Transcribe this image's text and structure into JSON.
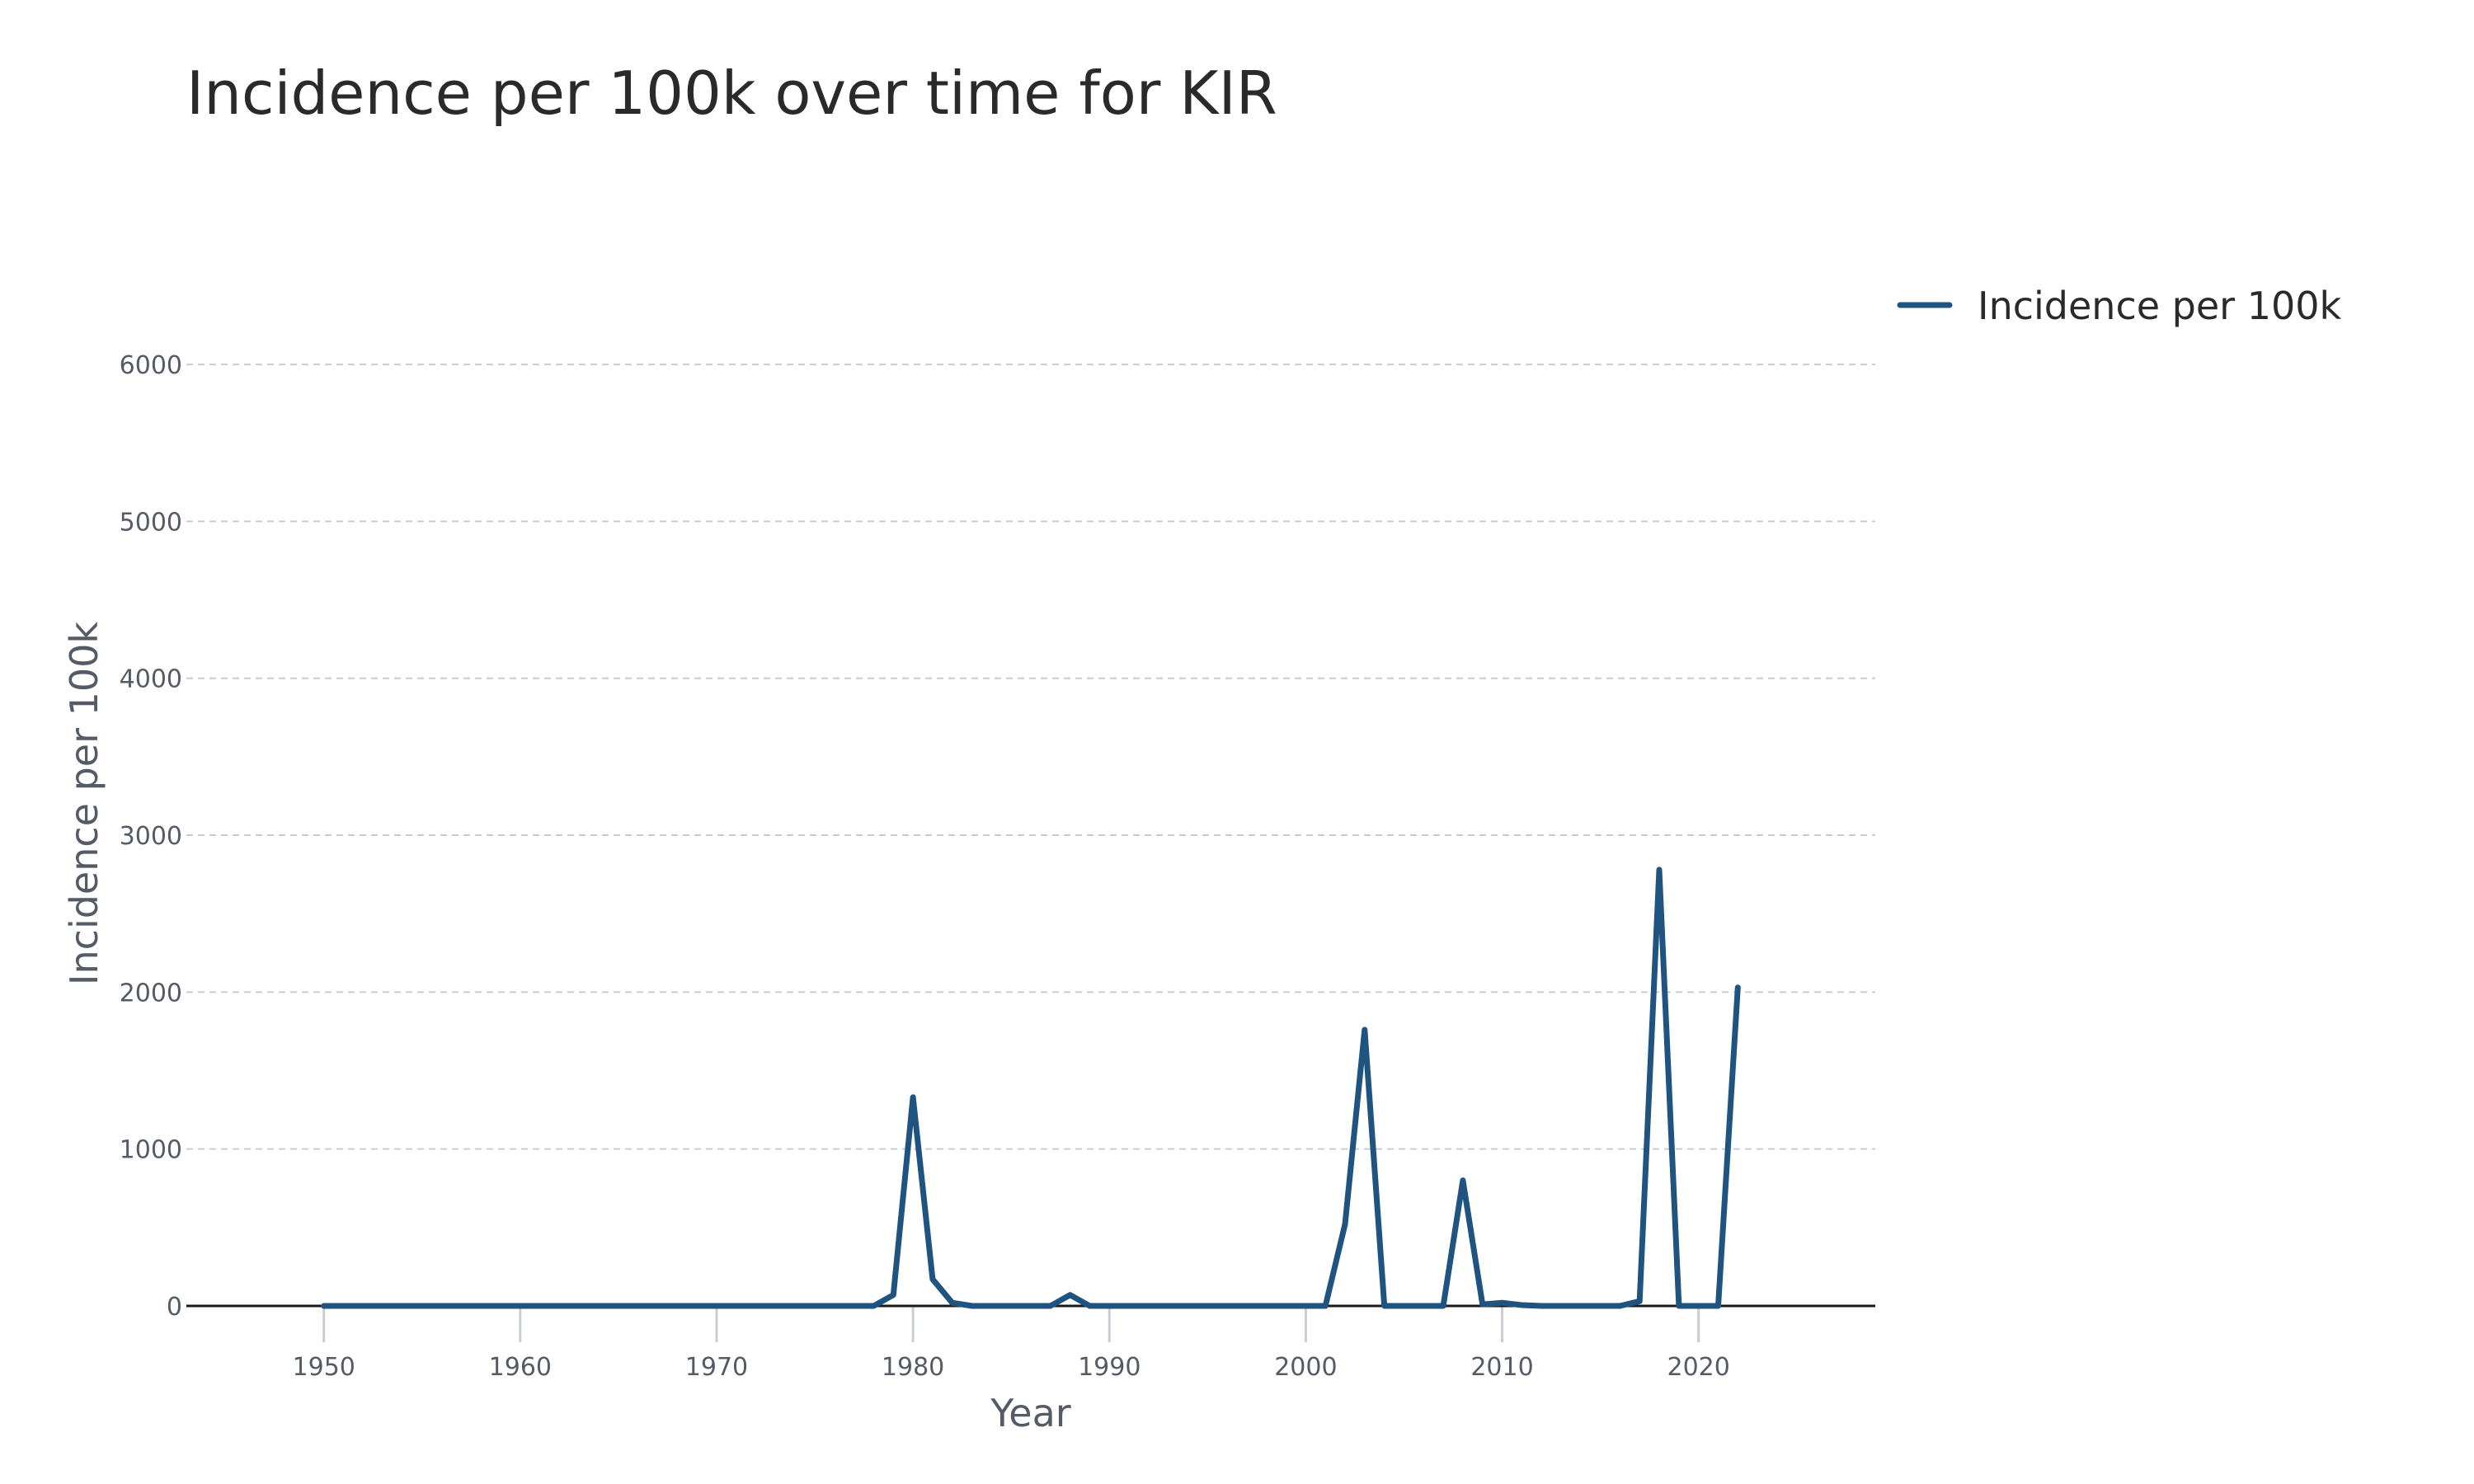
{
  "chart_data": {
    "type": "line",
    "title": "Incidence per 100k over time for KIR",
    "xlabel": "Year",
    "ylabel": "Incidence per 100k",
    "xlim": [
      1943,
      2029
    ],
    "ylim": [
      0,
      6300
    ],
    "x_ticks": [
      1950,
      1960,
      1970,
      1980,
      1990,
      2000,
      2010,
      2020
    ],
    "x_tick_labels": [
      "1950",
      "1960",
      "1970",
      "1980",
      "1990",
      "2000",
      "2010",
      "2020"
    ],
    "y_ticks": [
      0,
      1000,
      2000,
      3000,
      4000,
      5000,
      6000
    ],
    "y_tick_labels": [
      "0",
      "1000",
      "2000",
      "3000",
      "4000",
      "5000",
      "6000"
    ],
    "grid": true,
    "legend_position": "top-right",
    "color": "#1f5480",
    "series": [
      {
        "name": "Incidence per 100k",
        "x": [
          1950,
          1951,
          1952,
          1953,
          1954,
          1955,
          1956,
          1957,
          1958,
          1959,
          1960,
          1961,
          1962,
          1963,
          1964,
          1965,
          1966,
          1967,
          1968,
          1969,
          1970,
          1971,
          1972,
          1973,
          1974,
          1975,
          1976,
          1977,
          1978,
          1979,
          1980,
          1981,
          1982,
          1983,
          1984,
          1985,
          1986,
          1987,
          1988,
          1989,
          1990,
          1991,
          1992,
          1993,
          1994,
          1995,
          1996,
          1997,
          1998,
          1999,
          2000,
          2001,
          2002,
          2003,
          2004,
          2005,
          2006,
          2007,
          2008,
          2009,
          2010,
          2011,
          2012,
          2013,
          2014,
          2015,
          2016,
          2017,
          2018,
          2019,
          2020,
          2021,
          2022
        ],
        "values": [
          0,
          0,
          0,
          0,
          0,
          0,
          0,
          0,
          0,
          0,
          0,
          0,
          0,
          0,
          0,
          0,
          0,
          0,
          0,
          0,
          0,
          0,
          0,
          0,
          0,
          0,
          0,
          0,
          0,
          70,
          1330,
          170,
          20,
          0,
          0,
          0,
          0,
          0,
          70,
          0,
          0,
          0,
          0,
          0,
          0,
          0,
          0,
          0,
          0,
          0,
          0,
          0,
          520,
          1760,
          0,
          0,
          0,
          0,
          800,
          10,
          20,
          5,
          0,
          0,
          0,
          0,
          0,
          30,
          2780,
          0,
          0,
          0,
          2030
        ]
      }
    ]
  }
}
